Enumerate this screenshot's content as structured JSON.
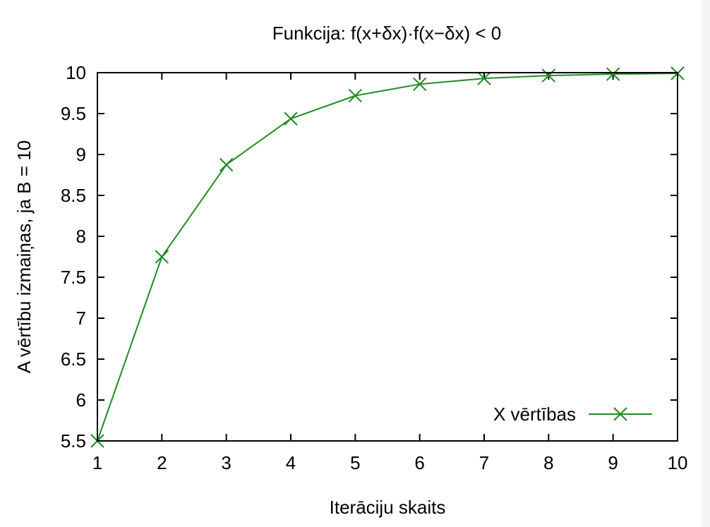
{
  "chart_data": {
    "type": "line",
    "title": "Funkcija: f(x+δx)·f(x−δx) < 0",
    "xlabel": "Iterāciju skaits",
    "ylabel": "A vērtību izmaiņas, ja B = 10",
    "xlim": [
      1,
      10
    ],
    "ylim": [
      5.5,
      10
    ],
    "x_ticks": [
      "1",
      "2",
      "3",
      "4",
      "5",
      "6",
      "7",
      "8",
      "9",
      "10"
    ],
    "y_ticks": [
      "5.5",
      "6",
      "6.5",
      "7",
      "7.5",
      "8",
      "8.5",
      "9",
      "9.5",
      "10"
    ],
    "grid": false,
    "legend_position": "bottom-right",
    "series": [
      {
        "name": "X vērtības",
        "color": "#228B22",
        "marker": "x",
        "x": [
          1,
          2,
          3,
          4,
          5,
          6,
          7,
          8,
          9,
          10
        ],
        "y": [
          5.5,
          7.75,
          8.875,
          9.4375,
          9.71875,
          9.859375,
          9.9296875,
          9.96484375,
          9.982421875,
          9.9912109375
        ]
      }
    ]
  }
}
